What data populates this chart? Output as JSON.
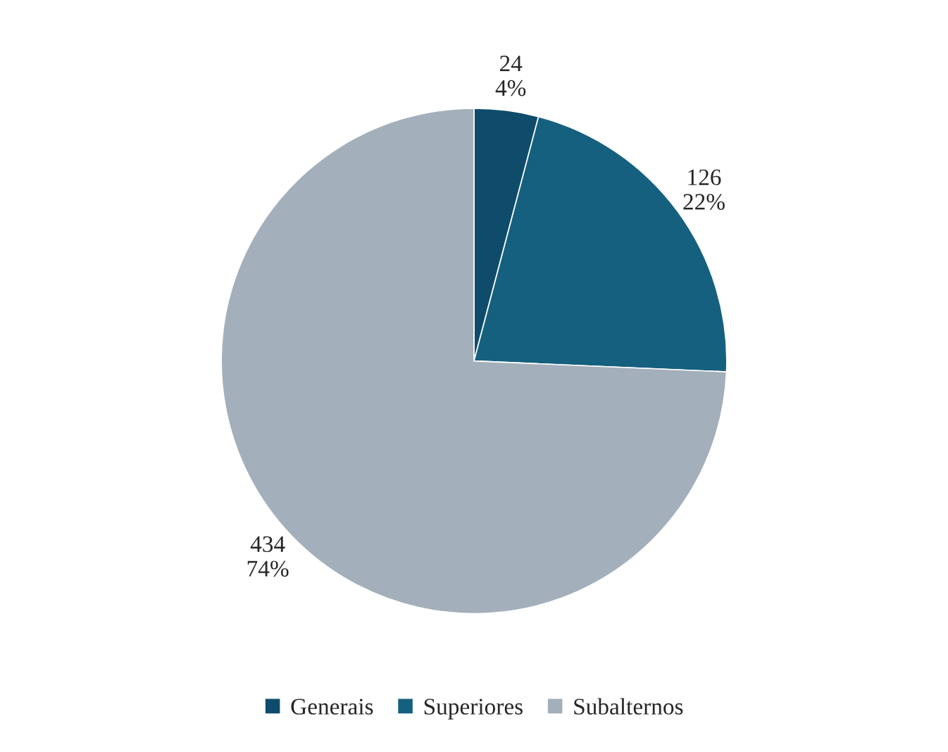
{
  "chart_data": {
    "type": "pie",
    "categories": [
      "Generais",
      "Superiores",
      "Subalternos"
    ],
    "values": [
      24,
      126,
      434
    ],
    "colors": [
      "#0f4c6b",
      "#16607f",
      "#a3afba"
    ],
    "value_labels": [
      "24\n4%",
      "126\n22%",
      "434\n74%"
    ],
    "legend": "bottom"
  }
}
